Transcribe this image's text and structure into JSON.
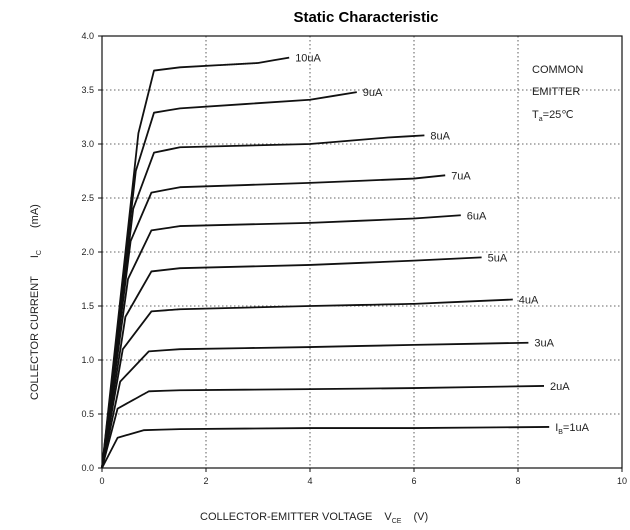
{
  "chart_data": {
    "type": "line",
    "title": "Static Characteristic",
    "xlabel": {
      "main": "COLLECTOR-EMITTER VOLTAGE",
      "symbol": "V",
      "subscript": "CE",
      "unit": "(V)"
    },
    "ylabel": {
      "main": "COLLECTOR CURRENT",
      "symbol": "I",
      "subscript": "C",
      "unit": "(mA)"
    },
    "xlim": [
      0,
      10
    ],
    "ylim": [
      0,
      4.0
    ],
    "x_ticks": [
      "0",
      "2",
      "4",
      "6",
      "8",
      "10"
    ],
    "y_ticks": [
      "0.0",
      "0.5",
      "1.0",
      "1.5",
      "2.0",
      "2.5",
      "3.0",
      "3.5",
      "4.0"
    ],
    "grid": "dotted",
    "annotation": {
      "line1": "COMMON",
      "line2": "EMITTER",
      "line3_symbol": "T",
      "line3_sub": "a",
      "line3_value": "=25℃"
    },
    "series": [
      {
        "name": "1uA",
        "label_prefix": "I",
        "label_sub": "B",
        "label_value": "=1uA",
        "points": [
          [
            0,
            0
          ],
          [
            0.3,
            0.28
          ],
          [
            0.8,
            0.35
          ],
          [
            1.5,
            0.36
          ],
          [
            4,
            0.37
          ],
          [
            6,
            0.37
          ],
          [
            8.6,
            0.38
          ]
        ]
      },
      {
        "name": "2uA",
        "points": [
          [
            0,
            0
          ],
          [
            0.3,
            0.55
          ],
          [
            0.9,
            0.71
          ],
          [
            1.5,
            0.72
          ],
          [
            4,
            0.73
          ],
          [
            6,
            0.74
          ],
          [
            8.5,
            0.76
          ]
        ]
      },
      {
        "name": "3uA",
        "points": [
          [
            0,
            0
          ],
          [
            0.35,
            0.8
          ],
          [
            0.9,
            1.08
          ],
          [
            1.5,
            1.1
          ],
          [
            4,
            1.12
          ],
          [
            6,
            1.14
          ],
          [
            8.2,
            1.16
          ]
        ]
      },
      {
        "name": "4uA",
        "points": [
          [
            0,
            0
          ],
          [
            0.4,
            1.1
          ],
          [
            0.95,
            1.45
          ],
          [
            1.5,
            1.47
          ],
          [
            4,
            1.5
          ],
          [
            6,
            1.52
          ],
          [
            7.9,
            1.56
          ]
        ]
      },
      {
        "name": "5uA",
        "points": [
          [
            0,
            0
          ],
          [
            0.45,
            1.4
          ],
          [
            0.95,
            1.82
          ],
          [
            1.5,
            1.85
          ],
          [
            4,
            1.88
          ],
          [
            6,
            1.92
          ],
          [
            7.3,
            1.95
          ]
        ]
      },
      {
        "name": "6uA",
        "points": [
          [
            0,
            0
          ],
          [
            0.5,
            1.75
          ],
          [
            0.95,
            2.2
          ],
          [
            1.5,
            2.24
          ],
          [
            4,
            2.27
          ],
          [
            6,
            2.31
          ],
          [
            6.9,
            2.34
          ]
        ]
      },
      {
        "name": "7uA",
        "points": [
          [
            0,
            0
          ],
          [
            0.55,
            2.1
          ],
          [
            0.95,
            2.55
          ],
          [
            1.5,
            2.6
          ],
          [
            4,
            2.64
          ],
          [
            6,
            2.68
          ],
          [
            6.6,
            2.71
          ]
        ]
      },
      {
        "name": "8uA",
        "points": [
          [
            0,
            0
          ],
          [
            0.6,
            2.4
          ],
          [
            1.0,
            2.92
          ],
          [
            1.5,
            2.97
          ],
          [
            4,
            3.0
          ],
          [
            5.5,
            3.06
          ],
          [
            6.2,
            3.08
          ]
        ]
      },
      {
        "name": "9uA",
        "points": [
          [
            0,
            0
          ],
          [
            0.65,
            2.75
          ],
          [
            1.0,
            3.29
          ],
          [
            1.5,
            3.33
          ],
          [
            4,
            3.41
          ],
          [
            4.9,
            3.48
          ]
        ]
      },
      {
        "name": "10uA",
        "points": [
          [
            0,
            0
          ],
          [
            0.7,
            3.1
          ],
          [
            1.0,
            3.68
          ],
          [
            1.5,
            3.71
          ],
          [
            3,
            3.75
          ],
          [
            3.6,
            3.8
          ]
        ]
      }
    ]
  }
}
